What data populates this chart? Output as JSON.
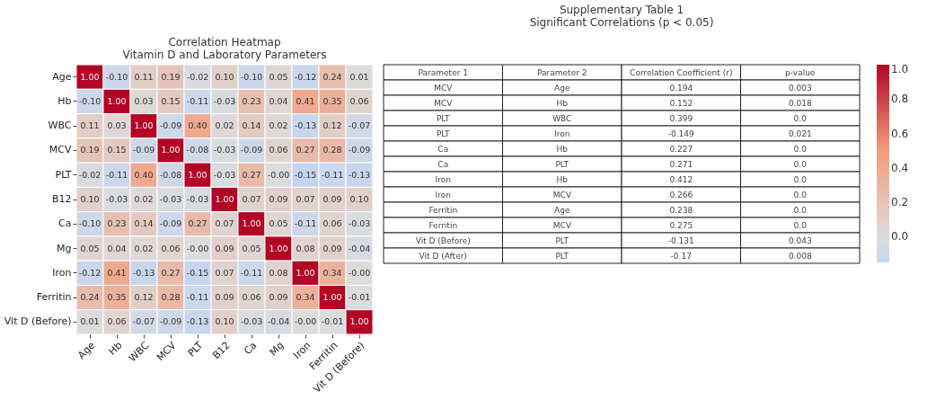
{
  "chart_data": [
    {
      "type": "heatmap",
      "title": "Correlation Heatmap",
      "subtitle": "Vitamin D and Laboratory Parameters",
      "categories": [
        "Age",
        "Hb",
        "WBC",
        "MCV",
        "PLT",
        "B12",
        "Ca",
        "Mg",
        "Iron",
        "Ferritin",
        "Vit D (Before)"
      ],
      "y_categories": [
        "Age",
        "Hb",
        "WBC",
        "MCV",
        "PLT",
        "B12",
        "Ca",
        "Mg",
        "Iron",
        "Ferritin",
        "Vit D (Before)"
      ],
      "cells": [
        [
          1.0,
          -0.1,
          0.11,
          0.19,
          -0.02,
          0.1,
          -0.1,
          0.05,
          -0.12,
          0.24,
          0.01
        ],
        [
          -0.1,
          1.0,
          0.03,
          0.15,
          -0.11,
          -0.03,
          0.23,
          0.04,
          0.41,
          0.35,
          0.06
        ],
        [
          0.11,
          0.03,
          1.0,
          -0.09,
          0.4,
          0.02,
          0.14,
          0.02,
          -0.13,
          0.12,
          -0.07
        ],
        [
          0.19,
          0.15,
          -0.09,
          1.0,
          -0.08,
          -0.03,
          -0.09,
          0.06,
          0.27,
          0.28,
          -0.09
        ],
        [
          -0.02,
          -0.11,
          0.4,
          -0.08,
          1.0,
          -0.03,
          0.27,
          0.0,
          -0.15,
          -0.11,
          -0.13
        ],
        [
          0.1,
          -0.03,
          0.02,
          -0.03,
          -0.03,
          1.0,
          0.07,
          0.09,
          0.07,
          0.09,
          0.1
        ],
        [
          -0.1,
          0.23,
          0.14,
          -0.09,
          0.27,
          0.07,
          1.0,
          0.05,
          -0.11,
          0.06,
          -0.03
        ],
        [
          0.05,
          0.04,
          0.02,
          0.06,
          0.0,
          0.09,
          0.05,
          1.0,
          0.08,
          0.09,
          -0.04
        ],
        [
          -0.12,
          0.41,
          -0.13,
          0.27,
          -0.15,
          0.07,
          -0.11,
          0.08,
          1.0,
          0.34,
          0.0
        ],
        [
          0.24,
          0.35,
          0.12,
          0.28,
          -0.11,
          0.09,
          0.06,
          0.09,
          0.34,
          1.0,
          -0.01
        ],
        [
          0.01,
          0.06,
          -0.07,
          -0.09,
          -0.13,
          0.1,
          -0.03,
          -0.04,
          0.0,
          -0.01,
          1.0
        ]
      ],
      "cell_labels": [
        [
          "1.00",
          "-0.10",
          "0.11",
          "0.19",
          "-0.02",
          "0.10",
          "-0.10",
          "0.05",
          "-0.12",
          "0.24",
          "0.01"
        ],
        [
          "-0.10",
          "1.00",
          "0.03",
          "0.15",
          "-0.11",
          "-0.03",
          "0.23",
          "0.04",
          "0.41",
          "0.35",
          "0.06"
        ],
        [
          "0.11",
          "0.03",
          "1.00",
          "-0.09",
          "0.40",
          "0.02",
          "0.14",
          "0.02",
          "-0.13",
          "0.12",
          "-0.07"
        ],
        [
          "0.19",
          "0.15",
          "-0.09",
          "1.00",
          "-0.08",
          "-0.03",
          "-0.09",
          "0.06",
          "0.27",
          "0.28",
          "-0.09"
        ],
        [
          "-0.02",
          "-0.11",
          "0.40",
          "-0.08",
          "1.00",
          "-0.03",
          "0.27",
          "-0.00",
          "-0.15",
          "-0.11",
          "-0.13"
        ],
        [
          "0.10",
          "-0.03",
          "0.02",
          "-0.03",
          "-0.03",
          "1.00",
          "0.07",
          "0.09",
          "0.07",
          "0.09",
          "0.10"
        ],
        [
          "-0.10",
          "0.23",
          "0.14",
          "-0.09",
          "0.27",
          "0.07",
          "1.00",
          "0.05",
          "-0.11",
          "0.06",
          "-0.03"
        ],
        [
          "0.05",
          "0.04",
          "0.02",
          "0.06",
          "-0.00",
          "0.09",
          "0.05",
          "1.00",
          "0.08",
          "0.09",
          "-0.04"
        ],
        [
          "-0.12",
          "0.41",
          "-0.13",
          "0.27",
          "-0.15",
          "0.07",
          "-0.11",
          "0.08",
          "1.00",
          "0.34",
          "-0.00"
        ],
        [
          "0.24",
          "0.35",
          "0.12",
          "0.28",
          "-0.11",
          "0.09",
          "0.06",
          "0.09",
          "0.34",
          "1.00",
          "-0.01"
        ],
        [
          "0.01",
          "0.06",
          "-0.07",
          "-0.09",
          "-0.13",
          "0.10",
          "-0.03",
          "-0.04",
          "-0.00",
          "-0.01",
          "1.00"
        ]
      ],
      "clim": [
        -0.15,
        1.0
      ],
      "cticks": [
        {
          "value": 0,
          "label": "0.0"
        },
        {
          "value": 0.2,
          "label": "0.2"
        },
        {
          "value": 0.4,
          "label": "0.4"
        },
        {
          "value": 0.6,
          "label": "0.6"
        },
        {
          "value": 0.8,
          "label": "0.8"
        },
        {
          "value": 1.0,
          "label": "1.0"
        }
      ]
    },
    {
      "type": "other",
      "title": "Supplementary Table 1",
      "subtitle": "Significant Correlations (p < 0.05)",
      "categories": [
        "Parameter 1",
        "Parameter 2",
        "Correlation Coefficient (r)",
        "p-value"
      ],
      "annotations": [
        "MCV",
        "Age",
        "0.194",
        "0.003",
        "MCV",
        "Hb",
        "0.152",
        "0.018",
        "PLT",
        "WBC",
        "0.399",
        "0.0",
        "PLT",
        "Iron",
        "-0.149",
        "0.021",
        "Ca",
        "Hb",
        "0.227",
        "0.0",
        "Ca",
        "PLT",
        "0.271",
        "0.0",
        "Iron",
        "Hb",
        "0.412",
        "0.0",
        "Iron",
        "MCV",
        "0.266",
        "0.0",
        "Ferritin",
        "Age",
        "0.238",
        "0.0",
        "Ferritin",
        "MCV",
        "0.275",
        "0.0",
        "Vit D (Before)",
        "PLT",
        "-0.131",
        "0.043",
        "Vit D (After)",
        "PLT",
        "-0.17",
        "0.008"
      ]
    }
  ]
}
